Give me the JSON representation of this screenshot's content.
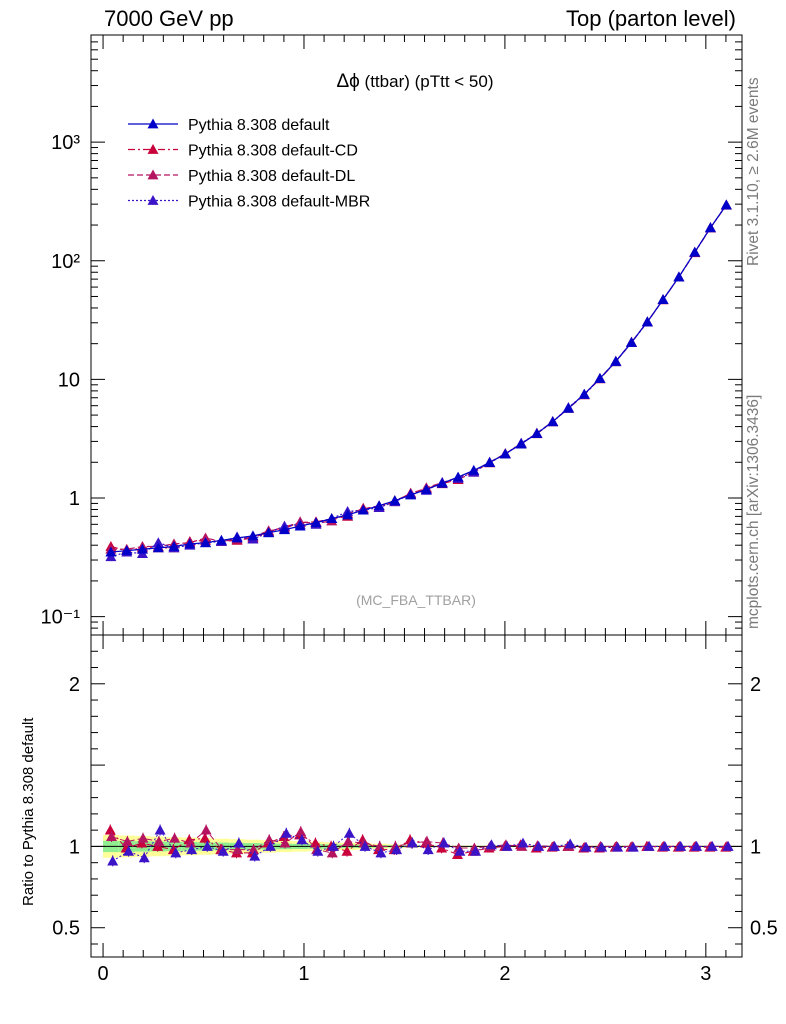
{
  "header": {
    "energy": "7000 GeV pp",
    "process": "Top (parton level)"
  },
  "side_text": {
    "rivet": "Rivet 3.1.10, ≥ 2.6M events",
    "source": "mcplots.cern.ch [arXiv:1306.3436]"
  },
  "chart_data": {
    "type": "line",
    "title_symbol": "Δϕ",
    "title_rest": " (ttbar) (pTtt < 50)",
    "watermark": "(MC_FBA_TTBAR)",
    "ratio_ylabel": "Ratio to Pythia 8.308 default",
    "x_tick_labels": [
      "0",
      "1",
      "2",
      "3"
    ],
    "y_tick_labels": [
      "10⁻¹",
      "1",
      "10",
      "10²",
      "10³"
    ],
    "ratio_tick_labels": [
      "0.5",
      "1",
      "2"
    ],
    "xlim": [
      -0.06,
      3.18
    ],
    "ylim": [
      0.07,
      8000
    ],
    "yscale": "log",
    "ratio_ylim": [
      0.32,
      2.3
    ],
    "x": [
      0.039,
      0.118,
      0.196,
      0.275,
      0.353,
      0.432,
      0.51,
      0.589,
      0.667,
      0.746,
      0.824,
      0.903,
      0.981,
      1.06,
      1.138,
      1.217,
      1.295,
      1.374,
      1.452,
      1.531,
      1.609,
      1.688,
      1.767,
      1.845,
      1.924,
      2.002,
      2.081,
      2.159,
      2.238,
      2.316,
      2.395,
      2.473,
      2.552,
      2.63,
      2.709,
      2.787,
      2.866,
      2.945,
      3.023,
      3.102
    ],
    "series": [
      {
        "name": "Pythia 8.308 default",
        "color": "#0000c8",
        "dash": "solid",
        "values": [
          0.35,
          0.36,
          0.37,
          0.38,
          0.39,
          0.41,
          0.42,
          0.44,
          0.46,
          0.48,
          0.51,
          0.54,
          0.58,
          0.62,
          0.67,
          0.72,
          0.79,
          0.86,
          0.95,
          1.06,
          1.18,
          1.33,
          1.5,
          1.71,
          1.99,
          2.35,
          2.85,
          3.5,
          4.4,
          5.7,
          7.5,
          10.2,
          14.2,
          20.5,
          30.5,
          47,
          73,
          118,
          190,
          295
        ],
        "ratio": [
          1.0,
          1.0,
          1.0,
          1.0,
          1.0,
          1.0,
          1.0,
          1.0,
          1.0,
          1.0,
          1.0,
          1.0,
          1.0,
          1.0,
          1.0,
          1.0,
          1.0,
          1.0,
          1.0,
          1.0,
          1.0,
          1.0,
          1.0,
          1.0,
          1.0,
          1.0,
          1.0,
          1.0,
          1.0,
          1.0,
          1.0,
          1.0,
          1.0,
          1.0,
          1.0,
          1.0,
          1.0,
          1.0,
          1.0,
          1.0
        ]
      },
      {
        "name": "Pythia 8.308 default-CD",
        "color": "#c8003c",
        "dash": "dashdot",
        "values": [
          0.39,
          0.36,
          0.38,
          0.38,
          0.38,
          0.43,
          0.44,
          0.43,
          0.44,
          0.46,
          0.52,
          0.57,
          0.62,
          0.63,
          0.67,
          0.7,
          0.82,
          0.84,
          0.93,
          1.1,
          1.2,
          1.32,
          1.43,
          1.65,
          1.98,
          2.35,
          2.88,
          3.48,
          4.38,
          5.7,
          7.4,
          10.1,
          14.1,
          20.4,
          30.4,
          46.8,
          72.8,
          117,
          189,
          294
        ],
        "ratio": [
          1.1,
          0.99,
          1.02,
          1.0,
          0.98,
          1.04,
          1.05,
          0.98,
          0.96,
          0.96,
          1.02,
          1.06,
          1.07,
          1.02,
          1.0,
          0.97,
          1.04,
          0.98,
          0.98,
          1.04,
          1.02,
          0.99,
          0.95,
          0.97,
          0.99,
          1.0,
          1.01,
          0.99,
          0.995,
          1.0,
          0.99,
          0.99,
          0.995,
          0.995,
          1.0,
          0.995,
          0.995,
          0.995,
          0.995,
          0.995
        ]
      },
      {
        "name": "Pythia 8.308 default-DL",
        "color": "#b41460",
        "dash": "dashed",
        "values": [
          0.37,
          0.37,
          0.39,
          0.39,
          0.41,
          0.42,
          0.46,
          0.43,
          0.45,
          0.47,
          0.53,
          0.55,
          0.63,
          0.61,
          0.64,
          0.74,
          0.81,
          0.86,
          0.95,
          1.08,
          1.22,
          1.35,
          1.49,
          1.7,
          2.0,
          2.37,
          2.86,
          3.52,
          4.42,
          5.72,
          7.5,
          10.2,
          14.2,
          20.6,
          30.6,
          47,
          73,
          118,
          190,
          296
        ],
        "ratio": [
          1.06,
          1.03,
          1.05,
          1.03,
          1.05,
          1.02,
          1.1,
          0.98,
          0.98,
          0.98,
          1.04,
          1.02,
          1.09,
          0.98,
          0.96,
          1.03,
          1.02,
          1.0,
          1.0,
          1.02,
          1.03,
          1.02,
          0.99,
          0.99,
          1.0,
          1.01,
          1.0,
          1.005,
          1.0,
          1.0,
          0.995,
          1.0,
          1.0,
          1.0,
          1.0,
          1.0,
          1.0,
          1.0,
          1.0,
          1.0
        ]
      },
      {
        "name": "Pythia 8.308 default-MBR",
        "color": "#3c14c8",
        "dash": "dotted",
        "values": [
          0.32,
          0.35,
          0.34,
          0.42,
          0.38,
          0.4,
          0.42,
          0.43,
          0.47,
          0.45,
          0.51,
          0.58,
          0.6,
          0.6,
          0.67,
          0.77,
          0.79,
          0.83,
          0.93,
          1.08,
          1.16,
          1.35,
          1.46,
          1.65,
          2.0,
          2.35,
          2.9,
          3.5,
          4.4,
          5.8,
          7.45,
          10.15,
          14.1,
          20.4,
          30.5,
          47,
          73,
          118,
          190,
          295
        ],
        "ratio": [
          0.91,
          0.97,
          0.93,
          1.1,
          0.96,
          0.98,
          1.0,
          0.97,
          1.02,
          0.94,
          1.0,
          1.08,
          1.04,
          0.97,
          1.0,
          1.08,
          1.0,
          0.96,
          0.98,
          1.02,
          0.98,
          1.02,
          0.97,
          0.97,
          1.01,
          1.0,
          1.02,
          1.0,
          1.0,
          1.015,
          0.995,
          0.995,
          0.995,
          0.995,
          1.0,
          1.0,
          1.0,
          1.0,
          1.0,
          1.0
        ]
      }
    ],
    "uncertainty_band": {
      "inner_color": "#90ee90",
      "outer_color": "#ffff99"
    }
  }
}
